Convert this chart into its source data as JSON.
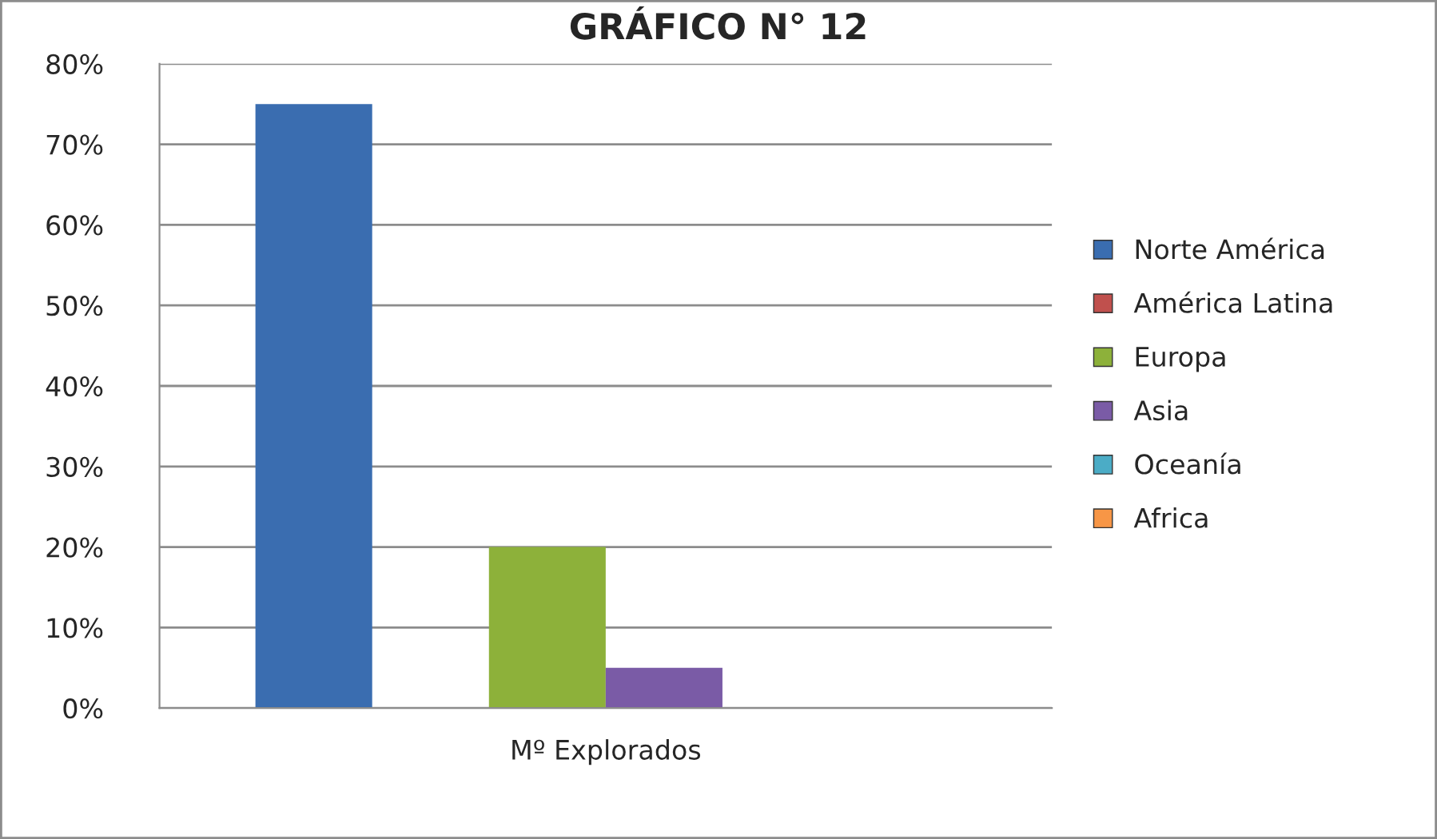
{
  "chart_data": {
    "type": "bar",
    "title": "GRÁFICO N° 12",
    "categories": [
      "Mº Explorados"
    ],
    "series": [
      {
        "name": "Norte América",
        "color": "#3a6db0",
        "values": [
          75
        ]
      },
      {
        "name": "América Latina",
        "color": "#c0504d",
        "values": [
          0
        ]
      },
      {
        "name": "Europa",
        "color": "#8db13a",
        "values": [
          20
        ]
      },
      {
        "name": "Asia",
        "color": "#7a5ba6",
        "values": [
          5
        ]
      },
      {
        "name": "Oceanía",
        "color": "#4bacc6",
        "values": [
          0
        ]
      },
      {
        "name": "Africa",
        "color": "#f79646",
        "values": [
          0
        ]
      }
    ],
    "ylim": [
      0,
      80
    ],
    "yticks": [
      {
        "value": 0,
        "label": "0%"
      },
      {
        "value": 10,
        "label": "10%"
      },
      {
        "value": 20,
        "label": "20%"
      },
      {
        "value": 30,
        "label": "30%"
      },
      {
        "value": 40,
        "label": "40%"
      },
      {
        "value": 50,
        "label": "50%"
      },
      {
        "value": 60,
        "label": "60%"
      },
      {
        "value": 70,
        "label": "70%"
      },
      {
        "value": 80,
        "label": "80%"
      }
    ],
    "grid": "y",
    "legend": "right"
  }
}
